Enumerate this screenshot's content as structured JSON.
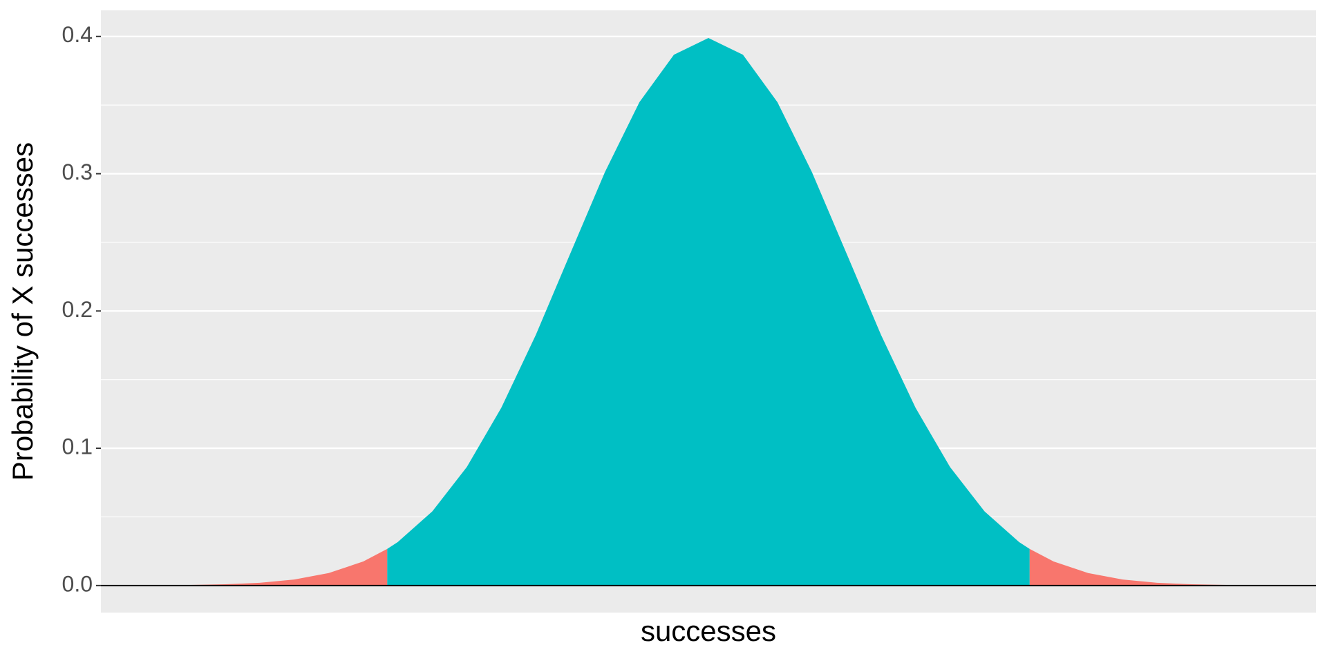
{
  "chart_data": {
    "type": "area",
    "x_label": "successes",
    "y_label": "Probability of X successes",
    "x": [
      -4,
      -3.75,
      -3.5,
      -3.25,
      -3,
      -2.75,
      -2.5,
      -2.326,
      -2.25,
      -2,
      -1.75,
      -1.5,
      -1.25,
      -1,
      -0.75,
      -0.5,
      -0.25,
      0,
      0.25,
      0.5,
      0.75,
      1,
      1.25,
      1.5,
      1.75,
      2,
      2.25,
      2.326,
      2.5,
      2.75,
      3,
      3.25,
      3.5,
      3.75,
      4
    ],
    "series": [
      {
        "color": "#F8766D",
        "values": [
          0.0001,
          0.0004,
          0.0009,
          0.002,
          0.0044,
          0.0091,
          0.0175,
          0.0267,
          null,
          null,
          null,
          null,
          null,
          null,
          null,
          null,
          null,
          null,
          null,
          null,
          null,
          null,
          null,
          null,
          null,
          null,
          null,
          0.0267,
          0.0175,
          0.0091,
          0.0044,
          0.002,
          0.0009,
          0.0004,
          0.0001
        ]
      },
      {
        "color": "#00BFC4",
        "values": [
          null,
          null,
          null,
          null,
          null,
          null,
          null,
          0.0267,
          0.0317,
          0.054,
          0.0863,
          0.1295,
          0.1826,
          0.242,
          0.3011,
          0.3521,
          0.3867,
          0.3989,
          0.3867,
          0.3521,
          0.3011,
          0.242,
          0.1826,
          0.1295,
          0.0863,
          0.054,
          0.0317,
          0.0267,
          null,
          null,
          null,
          null,
          null,
          null,
          null
        ]
      }
    ],
    "xlim": [
      -4.4,
      4.4
    ],
    "ylim": [
      -0.0197,
      0.419
    ],
    "yticks": [
      {
        "value": 0,
        "label": "0.0"
      },
      0.1,
      0.2,
      0.3,
      0.4
    ],
    "minor_yticks": [
      0.05,
      0.15,
      0.25,
      0.35
    ],
    "hline": 0,
    "grid": true
  }
}
